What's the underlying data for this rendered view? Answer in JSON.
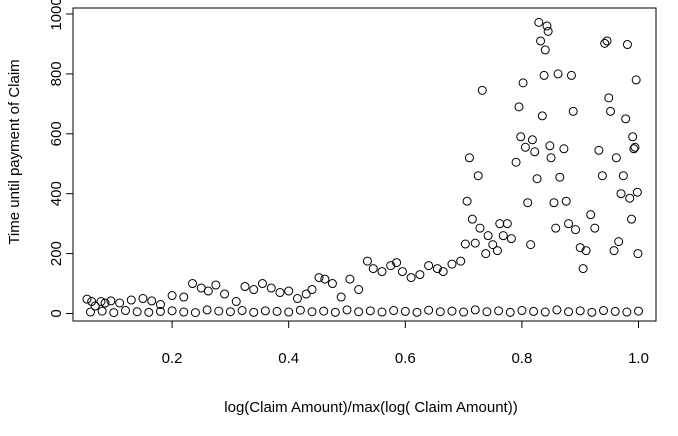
{
  "chart_data": {
    "type": "scatter",
    "title": "",
    "xlabel": "log(Claim Amount)/max(log( Claim Amount))",
    "ylabel": "Time until payment of Claim",
    "xlim": [
      0.03,
      1.03
    ],
    "ylim": [
      -25,
      1020
    ],
    "x_ticks": [
      0.2,
      0.4,
      0.6,
      0.8,
      1.0
    ],
    "x_tick_labels": [
      "0.2",
      "0.4",
      "0.6",
      "0.8",
      "1.0"
    ],
    "y_ticks": [
      0,
      200,
      400,
      600,
      800,
      1000
    ],
    "y_tick_labels": [
      "0",
      "200",
      "400",
      "600",
      "800",
      "1000"
    ],
    "grid": false,
    "legend": "none",
    "marker": "open-circle",
    "series": [
      {
        "points": [
          [
            0.054,
            48
          ],
          [
            0.062,
            40
          ],
          [
            0.068,
            25
          ],
          [
            0.078,
            40
          ],
          [
            0.085,
            35
          ],
          [
            0.095,
            42
          ],
          [
            0.11,
            35
          ],
          [
            0.13,
            45
          ],
          [
            0.15,
            50
          ],
          [
            0.165,
            42
          ],
          [
            0.18,
            30
          ],
          [
            0.2,
            60
          ],
          [
            0.22,
            55
          ],
          [
            0.235,
            100
          ],
          [
            0.25,
            85
          ],
          [
            0.262,
            75
          ],
          [
            0.275,
            95
          ],
          [
            0.29,
            65
          ],
          [
            0.31,
            40
          ],
          [
            0.325,
            90
          ],
          [
            0.34,
            80
          ],
          [
            0.355,
            100
          ],
          [
            0.37,
            85
          ],
          [
            0.385,
            70
          ],
          [
            0.4,
            75
          ],
          [
            0.415,
            50
          ],
          [
            0.43,
            65
          ],
          [
            0.44,
            80
          ],
          [
            0.452,
            120
          ],
          [
            0.462,
            115
          ],
          [
            0.475,
            100
          ],
          [
            0.49,
            55
          ],
          [
            0.505,
            115
          ],
          [
            0.52,
            80
          ],
          [
            0.535,
            175
          ],
          [
            0.545,
            150
          ],
          [
            0.56,
            140
          ],
          [
            0.575,
            160
          ],
          [
            0.585,
            170
          ],
          [
            0.595,
            140
          ],
          [
            0.61,
            120
          ],
          [
            0.625,
            130
          ],
          [
            0.64,
            160
          ],
          [
            0.655,
            150
          ],
          [
            0.665,
            140
          ],
          [
            0.68,
            165
          ],
          [
            0.695,
            175
          ],
          [
            0.703,
            232
          ],
          [
            0.706,
            375
          ],
          [
            0.71,
            520
          ],
          [
            0.715,
            315
          ],
          [
            0.72,
            235
          ],
          [
            0.725,
            460
          ],
          [
            0.728,
            285
          ],
          [
            0.732,
            745
          ],
          [
            0.738,
            200
          ],
          [
            0.742,
            260
          ],
          [
            0.75,
            230
          ],
          [
            0.758,
            210
          ],
          [
            0.762,
            300
          ],
          [
            0.768,
            260
          ],
          [
            0.775,
            300
          ],
          [
            0.782,
            250
          ],
          [
            0.79,
            505
          ],
          [
            0.795,
            690
          ],
          [
            0.798,
            590
          ],
          [
            0.802,
            770
          ],
          [
            0.806,
            555
          ],
          [
            0.81,
            370
          ],
          [
            0.815,
            230
          ],
          [
            0.818,
            580
          ],
          [
            0.822,
            540
          ],
          [
            0.826,
            450
          ],
          [
            0.829,
            972
          ],
          [
            0.832,
            910
          ],
          [
            0.835,
            660
          ],
          [
            0.838,
            795
          ],
          [
            0.84,
            880
          ],
          [
            0.843,
            960
          ],
          [
            0.845,
            942
          ],
          [
            0.848,
            560
          ],
          [
            0.85,
            520
          ],
          [
            0.855,
            370
          ],
          [
            0.858,
            285
          ],
          [
            0.862,
            800
          ],
          [
            0.865,
            455
          ],
          [
            0.872,
            550
          ],
          [
            0.876,
            375
          ],
          [
            0.88,
            300
          ],
          [
            0.885,
            795
          ],
          [
            0.888,
            675
          ],
          [
            0.892,
            280
          ],
          [
            0.9,
            220
          ],
          [
            0.905,
            150
          ],
          [
            0.91,
            210
          ],
          [
            0.918,
            330
          ],
          [
            0.925,
            285
          ],
          [
            0.932,
            545
          ],
          [
            0.938,
            460
          ],
          [
            0.942,
            902
          ],
          [
            0.946,
            910
          ],
          [
            0.949,
            720
          ],
          [
            0.952,
            675
          ],
          [
            0.958,
            210
          ],
          [
            0.962,
            520
          ],
          [
            0.966,
            240
          ],
          [
            0.97,
            400
          ],
          [
            0.974,
            460
          ],
          [
            0.978,
            650
          ],
          [
            0.981,
            898
          ],
          [
            0.985,
            385
          ],
          [
            0.988,
            315
          ],
          [
            0.99,
            590
          ],
          [
            0.992,
            550
          ],
          [
            0.994,
            555
          ],
          [
            0.996,
            780
          ],
          [
            0.998,
            405
          ],
          [
            0.999,
            200
          ],
          [
            0.06,
            5
          ],
          [
            0.08,
            8
          ],
          [
            0.1,
            3
          ],
          [
            0.12,
            10
          ],
          [
            0.14,
            6
          ],
          [
            0.16,
            4
          ],
          [
            0.18,
            7
          ],
          [
            0.2,
            9
          ],
          [
            0.22,
            5
          ],
          [
            0.24,
            3
          ],
          [
            0.26,
            12
          ],
          [
            0.28,
            8
          ],
          [
            0.3,
            6
          ],
          [
            0.32,
            10
          ],
          [
            0.34,
            4
          ],
          [
            0.36,
            9
          ],
          [
            0.38,
            7
          ],
          [
            0.4,
            5
          ],
          [
            0.42,
            11
          ],
          [
            0.44,
            6
          ],
          [
            0.46,
            8
          ],
          [
            0.48,
            4
          ],
          [
            0.5,
            12
          ],
          [
            0.52,
            6
          ],
          [
            0.54,
            9
          ],
          [
            0.56,
            5
          ],
          [
            0.58,
            10
          ],
          [
            0.6,
            7
          ],
          [
            0.62,
            4
          ],
          [
            0.64,
            11
          ],
          [
            0.66,
            6
          ],
          [
            0.68,
            8
          ],
          [
            0.7,
            5
          ],
          [
            0.72,
            12
          ],
          [
            0.74,
            6
          ],
          [
            0.76,
            9
          ],
          [
            0.78,
            4
          ],
          [
            0.8,
            10
          ],
          [
            0.82,
            7
          ],
          [
            0.84,
            5
          ],
          [
            0.86,
            12
          ],
          [
            0.88,
            6
          ],
          [
            0.9,
            9
          ],
          [
            0.92,
            4
          ],
          [
            0.94,
            10
          ],
          [
            0.96,
            7
          ],
          [
            0.98,
            5
          ],
          [
            1.0,
            8
          ]
        ]
      }
    ]
  }
}
